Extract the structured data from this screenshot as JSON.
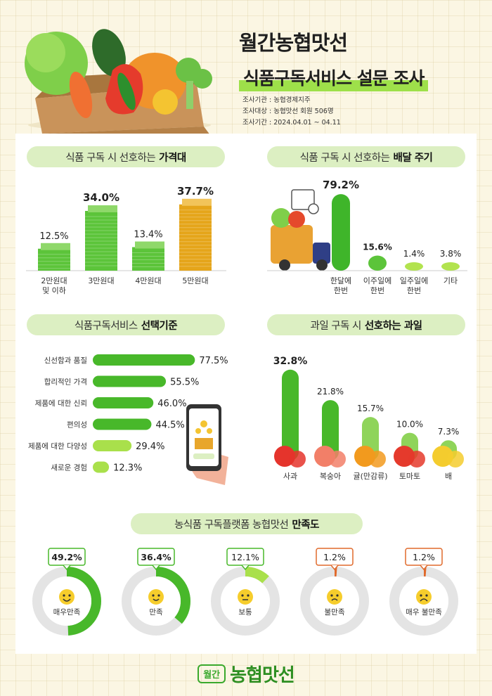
{
  "header": {
    "title": "월간농협맛선",
    "subtitle": "식품구독서비스 설문 조사",
    "meta": [
      "조사기관 : 농협경제지주",
      "조사대상 : 농협맛선 회원 506명",
      "조사기간 : 2024.04.01 ~ 04.11"
    ]
  },
  "sections": {
    "price": {
      "title": "식품 구독 시 선호하는",
      "title_bold": "가격대"
    },
    "delivery": {
      "title": "식품 구독 시 선호하는",
      "title_bold": "배달 주기"
    },
    "criteria": {
      "title": "식품구독서비스",
      "title_bold": "선택기준"
    },
    "fruit": {
      "title": "과일 구독 시",
      "title_bold": "선호하는 과일"
    },
    "satisfaction": {
      "title": "농식품 구독플랫폼 농협맛선",
      "title_bold": "만족도"
    }
  },
  "chart_data": [
    {
      "type": "bar",
      "id": "price",
      "categories": [
        "2만원대\n및 이하",
        "3만원대",
        "4만원대",
        "5만원대"
      ],
      "values": [
        12.5,
        34.0,
        13.4,
        37.7
      ],
      "labels": [
        "12.5%",
        "34.0%",
        "13.4%",
        "37.7%"
      ],
      "colors": [
        "#5cc43a",
        "#5cc43a",
        "#5cc43a",
        "#e5a51a"
      ]
    },
    {
      "type": "bar",
      "id": "delivery",
      "categories": [
        "한달에\n한번",
        "이주일에\n한번",
        "일주일에\n한번",
        "기타"
      ],
      "values": [
        79.2,
        15.6,
        1.4,
        3.8
      ],
      "labels": [
        "79.2%",
        "15.6%",
        "1.4%",
        "3.8%"
      ]
    },
    {
      "type": "bar",
      "id": "criteria",
      "orientation": "horizontal",
      "categories": [
        "신선함과 품질",
        "합리적인 가격",
        "제품에 대한 신뢰",
        "편의성",
        "제품에 대한 다양성",
        "새로운 경험"
      ],
      "values": [
        77.5,
        55.5,
        46.0,
        44.5,
        29.4,
        12.3
      ],
      "labels": [
        "77.5%",
        "55.5%",
        "46.0%",
        "44.5%",
        "29.4%",
        "12.3%"
      ]
    },
    {
      "type": "bar",
      "id": "fruit",
      "categories": [
        "사과",
        "복숭아",
        "귤(만감류)",
        "토마토",
        "배"
      ],
      "values": [
        32.8,
        21.8,
        15.7,
        10.0,
        7.3
      ],
      "labels": [
        "32.8%",
        "21.8%",
        "15.7%",
        "10.0%",
        "7.3%"
      ]
    },
    {
      "type": "pie",
      "id": "satisfaction",
      "categories": [
        "매우만족",
        "만족",
        "보통",
        "불만족",
        "매우 불만족"
      ],
      "values": [
        49.2,
        36.4,
        12.1,
        1.2,
        1.2
      ],
      "labels": [
        "49.2%",
        "36.4%",
        "12.1%",
        "1.2%",
        "1.2%"
      ],
      "faces": [
        "very-happy",
        "happy",
        "neutral",
        "sad",
        "very-sad"
      ]
    }
  ],
  "footer": {
    "badge": "월간",
    "brand": "농협맛선"
  },
  "colors": {
    "green": "#48b82a",
    "light_green": "#a9e04b",
    "orange": "#e5a51a",
    "red_orange": "#e06a2c",
    "pill": "#dcefc2"
  }
}
